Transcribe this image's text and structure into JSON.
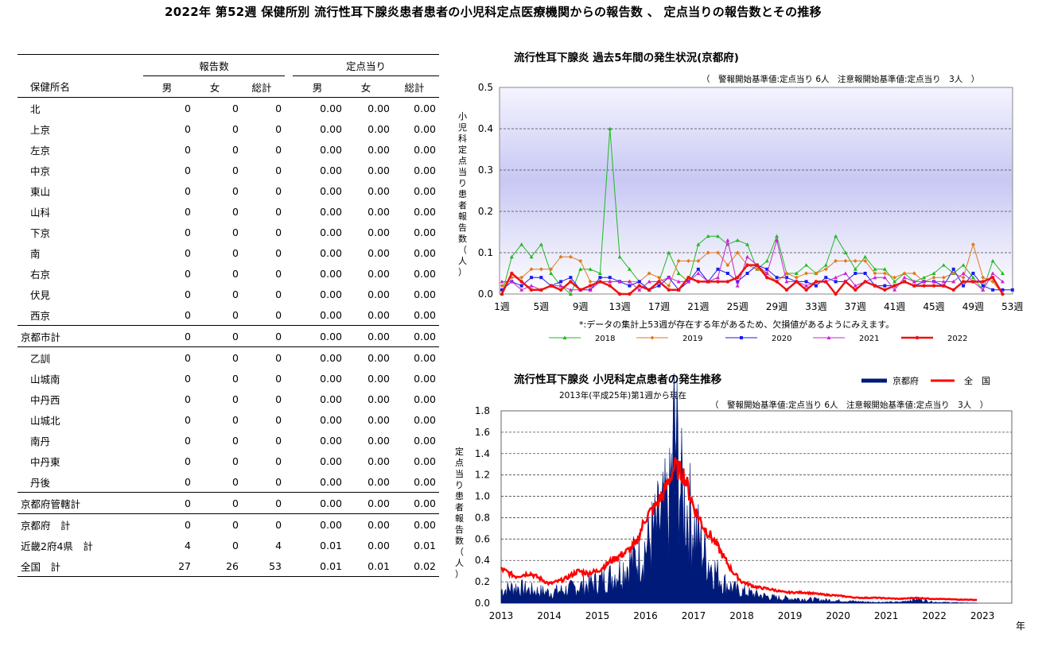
{
  "page_title": "2022年 第52週 保健所別 流行性耳下腺炎患者患者の小児科定点医療機関からの報告数 、 定点当りの報告数とその推移",
  "table": {
    "group_headers": [
      "報告数",
      "定点当り"
    ],
    "col_name_header": "保健所名",
    "sub_headers": [
      "男",
      "女",
      "総計",
      "男",
      "女",
      "総計"
    ],
    "rows": [
      {
        "name": "北",
        "values": [
          "0",
          "0",
          "0",
          "0.00",
          "0.00",
          "0.00"
        ]
      },
      {
        "name": "上京",
        "values": [
          "0",
          "0",
          "0",
          "0.00",
          "0.00",
          "0.00"
        ]
      },
      {
        "name": "左京",
        "values": [
          "0",
          "0",
          "0",
          "0.00",
          "0.00",
          "0.00"
        ]
      },
      {
        "name": "中京",
        "values": [
          "0",
          "0",
          "0",
          "0.00",
          "0.00",
          "0.00"
        ]
      },
      {
        "name": "東山",
        "values": [
          "0",
          "0",
          "0",
          "0.00",
          "0.00",
          "0.00"
        ]
      },
      {
        "name": "山科",
        "values": [
          "0",
          "0",
          "0",
          "0.00",
          "0.00",
          "0.00"
        ]
      },
      {
        "name": "下京",
        "values": [
          "0",
          "0",
          "0",
          "0.00",
          "0.00",
          "0.00"
        ]
      },
      {
        "name": "南",
        "values": [
          "0",
          "0",
          "0",
          "0.00",
          "0.00",
          "0.00"
        ]
      },
      {
        "name": "右京",
        "values": [
          "0",
          "0",
          "0",
          "0.00",
          "0.00",
          "0.00"
        ]
      },
      {
        "name": "伏見",
        "values": [
          "0",
          "0",
          "0",
          "0.00",
          "0.00",
          "0.00"
        ]
      },
      {
        "name": "西京",
        "values": [
          "0",
          "0",
          "0",
          "0.00",
          "0.00",
          "0.00"
        ]
      },
      {
        "name": "京都市計",
        "values": [
          "0",
          "0",
          "0",
          "0.00",
          "0.00",
          "0.00"
        ],
        "total": true
      },
      {
        "name": "乙訓",
        "values": [
          "0",
          "0",
          "0",
          "0.00",
          "0.00",
          "0.00"
        ]
      },
      {
        "name": "山城南",
        "values": [
          "0",
          "0",
          "0",
          "0.00",
          "0.00",
          "0.00"
        ]
      },
      {
        "name": "中丹西",
        "values": [
          "0",
          "0",
          "0",
          "0.00",
          "0.00",
          "0.00"
        ]
      },
      {
        "name": "山城北",
        "values": [
          "0",
          "0",
          "0",
          "0.00",
          "0.00",
          "0.00"
        ]
      },
      {
        "name": "南丹",
        "values": [
          "0",
          "0",
          "0",
          "0.00",
          "0.00",
          "0.00"
        ]
      },
      {
        "name": "中丹東",
        "values": [
          "0",
          "0",
          "0",
          "0.00",
          "0.00",
          "0.00"
        ]
      },
      {
        "name": "丹後",
        "values": [
          "0",
          "0",
          "0",
          "0.00",
          "0.00",
          "0.00"
        ]
      },
      {
        "name": "京都府管轄計",
        "values": [
          "0",
          "0",
          "0",
          "0.00",
          "0.00",
          "0.00"
        ],
        "total": true
      },
      {
        "name": "京都府　計",
        "values": [
          "0",
          "0",
          "0",
          "0.00",
          "0.00",
          "0.00"
        ],
        "total": true,
        "nosep": true
      },
      {
        "name": "近畿2府4県　計",
        "values": [
          "4",
          "0",
          "4",
          "0.01",
          "0.00",
          "0.01"
        ],
        "total": true,
        "nosep": true
      },
      {
        "name": "全国　計",
        "values": [
          "27",
          "26",
          "53",
          "0.01",
          "0.01",
          "0.02"
        ],
        "total": true,
        "nosep": true,
        "last": true
      }
    ]
  },
  "chart_data": [
    {
      "type": "line",
      "title": "流行性耳下腺炎 過去5年間の発生状況(京都府)",
      "subtitle": "（　警報開始基準値:定点当り 6人　注意報開始基準値:定点当り　3人　）",
      "ylabel": "小児科定点当り患者報告数（人）",
      "xlabel": "",
      "note": "*:データの集計上53週が存在する年があるため、欠損値があるようにみえます。",
      "ylim": [
        0,
        0.5
      ],
      "yticks": [
        "0.0",
        "0.1",
        "0.2",
        "0.3",
        "0.4",
        "0.5"
      ],
      "x_tick_labels": [
        "1週",
        "5週",
        "9週",
        "13週",
        "17週",
        "21週",
        "25週",
        "29週",
        "33週",
        "37週",
        "41週",
        "45週",
        "49週",
        "53週"
      ],
      "x_tick_weeks": [
        1,
        5,
        9,
        13,
        17,
        21,
        25,
        29,
        33,
        37,
        41,
        45,
        49,
        53
      ],
      "grid": true,
      "legend_position": "bottom",
      "series": [
        {
          "name": "2018",
          "color": "#22b822",
          "marker": "triangle",
          "values": [
            0,
            0.09,
            0.12,
            0.09,
            0.12,
            0.05,
            0.02,
            0,
            0.06,
            0.06,
            0.05,
            0.4,
            0.09,
            0.06,
            0.03,
            0.01,
            0.03,
            0.1,
            0.05,
            0.03,
            0.12,
            0.14,
            0.14,
            0.12,
            0.13,
            0.12,
            0.06,
            0.08,
            0.14,
            0.05,
            0.05,
            0.07,
            0.05,
            0.07,
            0.14,
            0.1,
            0.06,
            0.09,
            0.06,
            0.06,
            0.03,
            0.05,
            0.03,
            0.04,
            0.05,
            0.07,
            0.05,
            0.07,
            0.04,
            0.01,
            0.08,
            0.05
          ]
        },
        {
          "name": "2019",
          "color": "#e07a1e",
          "marker": "diamond",
          "values": [
            0.02,
            0.04,
            0.04,
            0.06,
            0.06,
            0.06,
            0.09,
            0.09,
            0.08,
            0.03,
            0.03,
            0.03,
            0.03,
            0.03,
            0.03,
            0.05,
            0.04,
            0.02,
            0.08,
            0.08,
            0.08,
            0.1,
            0.1,
            0.07,
            0.1,
            0.07,
            0.06,
            0.05,
            0.03,
            0.05,
            0.04,
            0.05,
            0.05,
            0.06,
            0.08,
            0.08,
            0.08,
            0.08,
            0.05,
            0.05,
            0.04,
            0.05,
            0.05,
            0.03,
            0.04,
            0.04,
            0.05,
            0.04,
            0.12,
            0.04,
            0.03,
            0
          ]
        },
        {
          "name": "2020",
          "color": "#1a1aee",
          "marker": "square",
          "values": [
            0.01,
            0.03,
            0.02,
            0.04,
            0.04,
            0.02,
            0.03,
            0.04,
            0.01,
            0.01,
            0.04,
            0.04,
            0.03,
            0.02,
            0.03,
            0.01,
            0.02,
            0.04,
            0.01,
            0.03,
            0.06,
            0.03,
            0.06,
            0.05,
            0.03,
            0.05,
            0.07,
            0.06,
            0.04,
            0.04,
            0.03,
            0.03,
            0.02,
            0.04,
            0.03,
            0.03,
            0.05,
            0.05,
            0.02,
            0.02,
            0.02,
            0.03,
            0.02,
            0.03,
            0.03,
            0.02,
            0.06,
            0.02,
            0.05,
            0.02,
            0.01,
            0.01,
            0.01
          ]
        },
        {
          "name": "2021",
          "color": "#cc22cc",
          "marker": "triangle",
          "values": [
            0.03,
            0.03,
            0.01,
            0.02,
            0.01,
            0.02,
            0.02,
            0.01,
            0.01,
            0.01,
            0.03,
            0.03,
            0.03,
            0.03,
            0.01,
            0.03,
            0.03,
            0.04,
            0.03,
            0.03,
            0.05,
            0.03,
            0.04,
            0.13,
            0.02,
            0.09,
            0.07,
            0.05,
            0.13,
            0.03,
            0.03,
            0.02,
            0.03,
            0.03,
            0.04,
            0.05,
            0.02,
            0.03,
            0.04,
            0.04,
            0.01,
            0.04,
            0.03,
            0.03,
            0.03,
            0.03,
            0.03,
            0.05,
            0.03,
            0.01,
            0.05,
            0.03
          ]
        },
        {
          "name": "2022",
          "color": "#ee1111",
          "marker": "circle",
          "values": [
            0,
            0.05,
            0.03,
            0.01,
            0.01,
            0.02,
            0.01,
            0.03,
            0.01,
            0.02,
            0.03,
            0.02,
            0,
            0,
            0.02,
            0.01,
            0.03,
            0.01,
            0.01,
            0.04,
            0.03,
            0.03,
            0.03,
            0.03,
            0.04,
            0.07,
            0.07,
            0.04,
            0.03,
            0.01,
            0.03,
            0.01,
            0.03,
            0.03,
            0,
            0.03,
            0.01,
            0.03,
            0.02,
            0.01,
            0.02,
            0.03,
            0.02,
            0.02,
            0.02,
            0.02,
            0.01,
            0.03,
            0.03,
            0.03,
            0.04,
            0
          ]
        }
      ]
    },
    {
      "type": "area",
      "title": "流行性耳下腺炎 小児科定点患者の発生推移",
      "subtitle": "2013年(平成25年)第1週から現在",
      "subtitle2": "（　警報開始基準値:定点当り 6人　注意報開始基準値:定点当り　3人　）",
      "ylabel": "定点当り患者報告数（人）",
      "xlabel": "年",
      "ylim": [
        0,
        1.8
      ],
      "yticks": [
        "0.0",
        "0.2",
        "0.4",
        "0.6",
        "0.8",
        "1.0",
        "1.2",
        "1.4",
        "1.6",
        "1.8"
      ],
      "x_tick_labels": [
        "2013",
        "2014",
        "2015",
        "2016",
        "2017",
        "2018",
        "2019",
        "2020",
        "2021",
        "2022",
        "2023"
      ],
      "grid": true,
      "legend_position": "top-right",
      "series": [
        {
          "name": "京都府",
          "color": "#001a7a",
          "kind": "area",
          "yearly_points": [
            [
              2013.0,
              0.12
            ],
            [
              2013.3,
              0.15
            ],
            [
              2013.6,
              0.12
            ],
            [
              2014.0,
              0.1
            ],
            [
              2014.3,
              0.12
            ],
            [
              2014.6,
              0.15
            ],
            [
              2015.0,
              0.2
            ],
            [
              2015.3,
              0.25
            ],
            [
              2015.6,
              0.35
            ],
            [
              2015.9,
              0.45
            ],
            [
              2016.1,
              0.6
            ],
            [
              2016.3,
              0.75
            ],
            [
              2016.5,
              0.9
            ],
            [
              2016.6,
              1.6
            ],
            [
              2016.75,
              1.0
            ],
            [
              2016.9,
              0.85
            ],
            [
              2017.1,
              0.6
            ],
            [
              2017.3,
              0.4
            ],
            [
              2017.6,
              0.2
            ],
            [
              2017.9,
              0.12
            ],
            [
              2018.3,
              0.08
            ],
            [
              2018.7,
              0.05
            ],
            [
              2019.2,
              0.04
            ],
            [
              2019.7,
              0.03
            ],
            [
              2020.2,
              0.02
            ],
            [
              2020.7,
              0.01
            ],
            [
              2021.3,
              0.01
            ],
            [
              2021.6,
              0.04
            ],
            [
              2022.0,
              0.01
            ],
            [
              2022.9,
              0.0
            ]
          ]
        },
        {
          "name": "全　国",
          "color": "#ff0000",
          "kind": "line",
          "yearly_points": [
            [
              2013.0,
              0.32
            ],
            [
              2013.3,
              0.25
            ],
            [
              2013.6,
              0.28
            ],
            [
              2013.85,
              0.22
            ],
            [
              2014.0,
              0.18
            ],
            [
              2014.3,
              0.22
            ],
            [
              2014.6,
              0.3
            ],
            [
              2014.8,
              0.28
            ],
            [
              2015.0,
              0.3
            ],
            [
              2015.3,
              0.4
            ],
            [
              2015.6,
              0.48
            ],
            [
              2015.8,
              0.55
            ],
            [
              2016.0,
              0.8
            ],
            [
              2016.2,
              0.9
            ],
            [
              2016.4,
              1.05
            ],
            [
              2016.6,
              1.28
            ],
            [
              2016.8,
              1.2
            ],
            [
              2017.0,
              0.9
            ],
            [
              2017.2,
              0.72
            ],
            [
              2017.4,
              0.6
            ],
            [
              2017.6,
              0.45
            ],
            [
              2017.8,
              0.3
            ],
            [
              2018.0,
              0.2
            ],
            [
              2018.3,
              0.15
            ],
            [
              2018.6,
              0.13
            ],
            [
              2018.9,
              0.1
            ],
            [
              2019.3,
              0.1
            ],
            [
              2019.7,
              0.08
            ],
            [
              2020.0,
              0.07
            ],
            [
              2020.4,
              0.05
            ],
            [
              2020.8,
              0.05
            ],
            [
              2021.3,
              0.04
            ],
            [
              2021.6,
              0.05
            ],
            [
              2022.0,
              0.04
            ],
            [
              2022.9,
              0.03
            ]
          ]
        }
      ]
    }
  ]
}
